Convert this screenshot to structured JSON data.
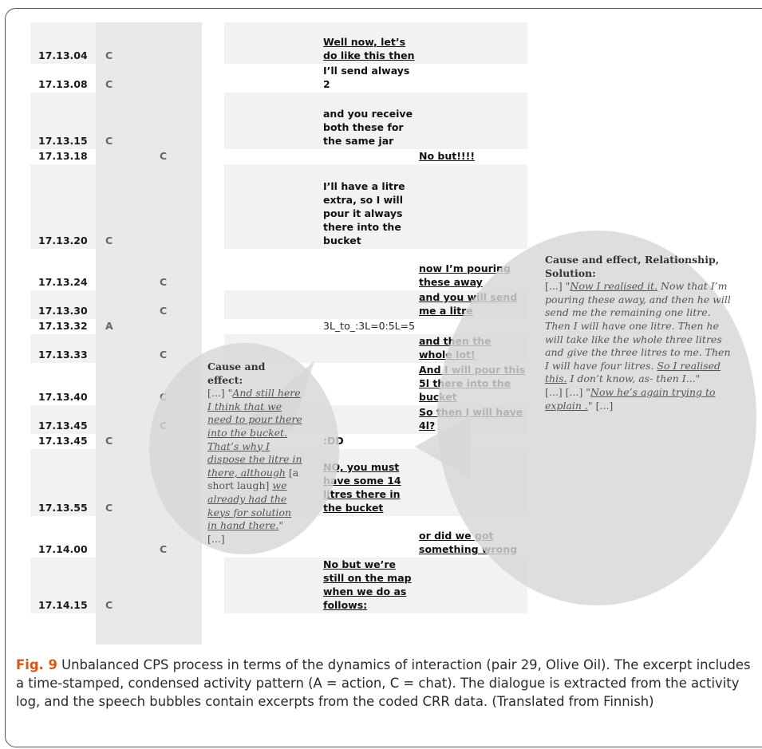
{
  "log_rows": [
    {
      "time": "17.13.04",
      "colA": "C",
      "colB": "",
      "c1": "",
      "c2": "Well now, let’s do like this then",
      "c2_ul": true,
      "c3": ""
    },
    {
      "time": "17.13.08",
      "colA": "C",
      "colB": "",
      "c1": "",
      "c2": "I’ll send always 2",
      "c2_ul": false,
      "c3": ""
    },
    {
      "time": "17.13.15",
      "colA": "C",
      "colB": "",
      "c1": "",
      "c2": "and you receive both these for the same jar",
      "c2_ul": false,
      "c3": ""
    },
    {
      "time": "17.13.18",
      "colA": "",
      "colB": "C",
      "c1": "",
      "c2": "",
      "c2_ul": false,
      "c3": "No but!!!!"
    },
    {
      "time": "17.13.20",
      "colA": "C",
      "colB": "",
      "c1": "",
      "c2": "I’ll have a litre extra, so I will pour it always there into the bucket",
      "c2_ul": false,
      "c3": ""
    },
    {
      "time": "17.13.24",
      "colA": "",
      "colB": "C",
      "c1": "",
      "c2": "",
      "c2_ul": false,
      "c3": "now I’m pouring these away"
    },
    {
      "time": "17.13.30",
      "colA": "",
      "colB": "C",
      "c1": "",
      "c2": "",
      "c2_ul": false,
      "c3": "and you will send me a litre"
    },
    {
      "time": "17.13.32",
      "colA": "A",
      "colB": "",
      "c1": "",
      "c2": "3L_to_:3L=0:5L=5",
      "c2_ul": false,
      "c2_code": true,
      "c3": ""
    },
    {
      "time": "17.13.33",
      "colA": "",
      "colB": "C",
      "c1": "",
      "c2": "",
      "c2_ul": false,
      "c3": "and then the whole lot!"
    },
    {
      "time": "17.13.40",
      "colA": "",
      "colB": "C",
      "c1": "",
      "c2": "",
      "c2_ul": false,
      "c3": "And I will pour this 5l there into the bucket"
    },
    {
      "time": "17.13.45",
      "colA": "",
      "colB": "C",
      "c1": "",
      "c2": "",
      "c2_ul": false,
      "c3": "So then I will have 4l?"
    },
    {
      "time": "17.13.45",
      "colA": "C",
      "colB": "",
      "c1": "",
      "c2": ":DD",
      "c2_ul": false,
      "c3": ""
    },
    {
      "time": "17.13.55",
      "colA": "C",
      "colB": "",
      "c1": "",
      "c2": "NO, you must have some 14 litres there in the bucket",
      "c2_ul": true,
      "c3": ""
    },
    {
      "time": "17.14.00",
      "colA": "",
      "colB": "C",
      "c1": "",
      "c2": "",
      "c2_ul": false,
      "c3": "or did we got something wrong"
    },
    {
      "time": "17.14.15",
      "colA": "C",
      "colB": "",
      "c1": "",
      "c2": "No but we’re still on the map when we do as follows:",
      "c2_ul": true,
      "c3": ""
    }
  ],
  "bubble_left": {
    "heading": "Cause and effect:",
    "open": "[...] \"",
    "quote_ul": "And still here I think that we need to pour there into the bucket. That’s why I dispose the litre in there, although",
    "mid": " [a short laugh] ",
    "quote_ul2": "we already had the keys for solution in hand there.",
    "close": "\" [...]"
  },
  "bubble_right": {
    "heading": "Cause and effect, Relationship, Solution:",
    "p1_open": "[...] \"",
    "p1_ul": "Now I realised it.",
    "p1_rest": " Now that I’m pouring these away, and then he will send me the remaining one litre. Then I will have one litre. Then he will take like the whole three litres and give the three litres to me. Then I will have four litres. ",
    "p1_ul2": "So I realised this.",
    "p1_end": " I don’t know, as- then I...\"",
    "p2_open": "[...] [...] \"",
    "p2_ul": "Now he’s again trying to explain .",
    "p2_end": "\" [...]"
  },
  "caption": {
    "label": "Fig. 9",
    "text": " Unbalanced CPS process in terms of the dynamics of interaction (pair 29, Olive Oil). The excerpt includes a time-stamped, condensed activity pattern (A = action, C = chat). The dialogue is extracted from the activity log, and the speech bubbles contain excerpts from the coded CRR data. (Translated from Finnish)"
  }
}
